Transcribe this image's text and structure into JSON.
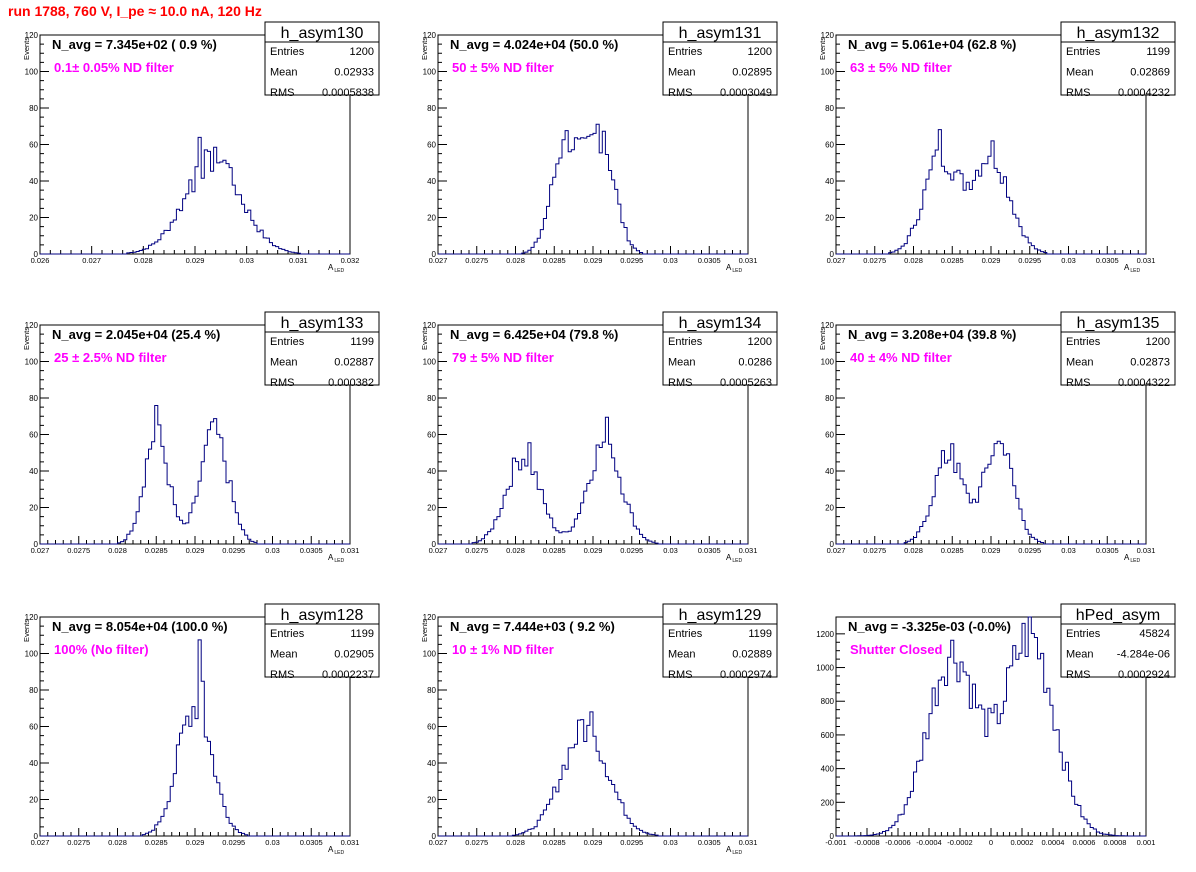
{
  "run_title": "run 1788,   760 V, I_pe ≈ 10.0 nA, 120 Hz",
  "stats_labels": {
    "entries": "Entries",
    "mean": "Mean",
    "rms": "RMS"
  },
  "colors": {
    "line": "#000080",
    "title": "#ff0000",
    "filter": "#ff00ff"
  },
  "chart_data": [
    {
      "type": "histogram",
      "hist_name": "h_asym130",
      "navg": "N_avg = 7.345e+02 ( 0.9 %)",
      "filter": "0.1± 0.05% ND filter",
      "entries": "1200",
      "mean": "0.02933",
      "rms": "0.0005838",
      "xlabel": "A",
      "xlabel_sub": "LED",
      "ylabel": "Events",
      "xlim": [
        0.026,
        0.032
      ],
      "ylim": [
        0,
        120
      ],
      "xticks": [
        0.026,
        0.027,
        0.028,
        0.029,
        0.03,
        0.031,
        0.032
      ],
      "xtick_labels": [
        "0.026",
        "0.027",
        "0.028",
        "0.029",
        "0.03",
        "0.031",
        "0.032"
      ],
      "yticks": [
        0,
        20,
        40,
        60,
        80,
        100,
        120
      ],
      "peaks": [
        {
          "mu": 0.02935,
          "sigma": 0.00055,
          "height": 50
        }
      ],
      "spikes": [
        [
          0.0292,
          58
        ],
        [
          0.0294,
          60
        ],
        [
          0.0291,
          56
        ],
        [
          0.0296,
          55
        ],
        [
          0.0289,
          45
        ]
      ]
    },
    {
      "type": "histogram",
      "hist_name": "h_asym131",
      "navg": "N_avg = 4.024e+04 (50.0 %)",
      "filter": "50 ± 5% ND filter",
      "entries": "1200",
      "mean": "0.02895",
      "rms": "0.0003049",
      "xlabel": "A",
      "xlabel_sub": "LED",
      "ylabel": "Events",
      "xlim": [
        0.027,
        0.031
      ],
      "ylim": [
        0,
        120
      ],
      "xticks": [
        0.027,
        0.0275,
        0.028,
        0.0285,
        0.029,
        0.0295,
        0.03,
        0.0305,
        0.031
      ],
      "xtick_labels": [
        "0.027",
        "0.0275",
        "0.028",
        "0.0285",
        "0.029",
        "0.0295",
        "0.03",
        "0.0305",
        "0.031"
      ],
      "yticks": [
        0,
        20,
        40,
        60,
        80,
        100,
        120
      ],
      "peaks": [
        {
          "mu": 0.02865,
          "sigma": 0.00018,
          "height": 60
        },
        {
          "mu": 0.0291,
          "sigma": 0.00018,
          "height": 62
        }
      ],
      "spikes": [
        [
          0.02862,
          68
        ],
        [
          0.02915,
          71
        ],
        [
          0.02905,
          70
        ]
      ]
    },
    {
      "type": "histogram",
      "hist_name": "h_asym132",
      "navg": "N_avg = 5.061e+04 (62.8 %)",
      "filter": "63 ± 5% ND filter",
      "entries": "1199",
      "mean": "0.02869",
      "rms": "0.0004232",
      "xlabel": "A",
      "xlabel_sub": "LED",
      "ylabel": "Events",
      "xlim": [
        0.027,
        0.031
      ],
      "ylim": [
        0,
        120
      ],
      "xticks": [
        0.027,
        0.0275,
        0.028,
        0.0285,
        0.029,
        0.0295,
        0.03,
        0.0305,
        0.031
      ],
      "xtick_labels": [
        "0.027",
        "0.0275",
        "0.028",
        "0.0285",
        "0.029",
        "0.0295",
        "0.03",
        "0.0305",
        "0.031"
      ],
      "yticks": [
        0,
        20,
        40,
        60,
        80,
        100,
        120
      ],
      "peaks": [
        {
          "mu": 0.02835,
          "sigma": 0.00022,
          "height": 52
        },
        {
          "mu": 0.029,
          "sigma": 0.00024,
          "height": 54
        }
      ],
      "spikes": [
        [
          0.02832,
          62
        ],
        [
          0.02898,
          57
        ],
        [
          0.029,
          57
        ]
      ]
    },
    {
      "type": "histogram",
      "hist_name": "h_asym133",
      "navg": "N_avg = 2.045e+04 (25.4 %)",
      "filter": "25 ± 2.5% ND filter",
      "entries": "1199",
      "mean": "0.02887",
      "rms": "0.000382",
      "xlabel": "A",
      "xlabel_sub": "LED",
      "ylabel": "Events",
      "xlim": [
        0.027,
        0.031
      ],
      "ylim": [
        0,
        120
      ],
      "xticks": [
        0.027,
        0.0275,
        0.028,
        0.0285,
        0.029,
        0.0295,
        0.03,
        0.0305,
        0.031
      ],
      "xtick_labels": [
        "0.027",
        "0.0275",
        "0.028",
        "0.0285",
        "0.029",
        "0.0295",
        "0.03",
        "0.0305",
        "0.031"
      ],
      "yticks": [
        0,
        20,
        40,
        60,
        80,
        100,
        120
      ],
      "peaks": [
        {
          "mu": 0.0285,
          "sigma": 0.00016,
          "height": 60
        },
        {
          "mu": 0.02925,
          "sigma": 0.00018,
          "height": 60
        }
      ],
      "spikes": [
        [
          0.0285,
          75
        ],
        [
          0.02922,
          66
        ]
      ]
    },
    {
      "type": "histogram",
      "hist_name": "h_asym134",
      "navg": "N_avg = 6.425e+04 (79.8 %)",
      "filter": "79 ± 5% ND filter",
      "entries": "1200",
      "mean": "0.0286",
      "rms": "0.0005263",
      "xlabel": "A",
      "xlabel_sub": "LED",
      "ylabel": "Events",
      "xlim": [
        0.027,
        0.031
      ],
      "ylim": [
        0,
        120
      ],
      "xticks": [
        0.027,
        0.0275,
        0.028,
        0.0285,
        0.029,
        0.0295,
        0.03,
        0.0305,
        0.031
      ],
      "xtick_labels": [
        "0.027",
        "0.0275",
        "0.028",
        "0.0285",
        "0.029",
        "0.0295",
        "0.03",
        "0.0305",
        "0.031"
      ],
      "yticks": [
        0,
        20,
        40,
        60,
        80,
        100,
        120
      ],
      "peaks": [
        {
          "mu": 0.0281,
          "sigma": 0.00022,
          "height": 48
        },
        {
          "mu": 0.02915,
          "sigma": 0.00022,
          "height": 55
        }
      ],
      "spikes": [
        [
          0.02818,
          53
        ],
        [
          0.0292,
          62
        ]
      ]
    },
    {
      "type": "histogram",
      "hist_name": "h_asym135",
      "navg": "N_avg = 3.208e+04 (39.8 %)",
      "filter": "40 ± 4% ND filter",
      "entries": "1200",
      "mean": "0.02873",
      "rms": "0.0004322",
      "xlabel": "A",
      "xlabel_sub": "LED",
      "ylabel": "Events",
      "xlim": [
        0.027,
        0.031
      ],
      "ylim": [
        0,
        120
      ],
      "xticks": [
        0.027,
        0.0275,
        0.028,
        0.0285,
        0.029,
        0.0295,
        0.03,
        0.0305,
        0.031
      ],
      "xtick_labels": [
        "0.027",
        "0.0275",
        "0.028",
        "0.0285",
        "0.029",
        "0.0295",
        "0.03",
        "0.0305",
        "0.031"
      ],
      "yticks": [
        0,
        20,
        40,
        60,
        80,
        100,
        120
      ],
      "peaks": [
        {
          "mu": 0.02845,
          "sigma": 0.00019,
          "height": 48
        },
        {
          "mu": 0.0291,
          "sigma": 0.00019,
          "height": 55
        }
      ],
      "spikes": [
        [
          0.0285,
          58
        ],
        [
          0.02915,
          62
        ]
      ]
    },
    {
      "type": "histogram",
      "hist_name": "h_asym128",
      "navg": "N_avg = 8.054e+04 (100.0 %)",
      "filter": "100% (No filter)",
      "entries": "1199",
      "mean": "0.02905",
      "rms": "0.0002237",
      "xlabel": "A",
      "xlabel_sub": "LED",
      "ylabel": "Events",
      "xlim": [
        0.027,
        0.031
      ],
      "ylim": [
        0,
        120
      ],
      "xticks": [
        0.027,
        0.0275,
        0.028,
        0.0285,
        0.029,
        0.0295,
        0.03,
        0.0305,
        0.031
      ],
      "xtick_labels": [
        "0.027",
        "0.0275",
        "0.028",
        "0.0285",
        "0.029",
        "0.0295",
        "0.03",
        "0.0305",
        "0.031"
      ],
      "yticks": [
        0,
        20,
        40,
        60,
        80,
        100,
        120
      ],
      "peaks": [
        {
          "mu": 0.029,
          "sigma": 0.00022,
          "height": 72
        }
      ],
      "spikes": [
        [
          0.02905,
          108
        ],
        [
          0.0291,
          90
        ]
      ]
    },
    {
      "type": "histogram",
      "hist_name": "h_asym129",
      "navg": "N_avg = 7.444e+03 ( 9.2 %)",
      "filter": "10 ± 1% ND filter",
      "entries": "1199",
      "mean": "0.02889",
      "rms": "0.0002974",
      "xlabel": "A",
      "xlabel_sub": "LED",
      "ylabel": "Events",
      "xlim": [
        0.027,
        0.031
      ],
      "ylim": [
        0,
        120
      ],
      "xticks": [
        0.027,
        0.0275,
        0.028,
        0.0285,
        0.029,
        0.0295,
        0.03,
        0.0305,
        0.031
      ],
      "xtick_labels": [
        "0.027",
        "0.0275",
        "0.028",
        "0.0285",
        "0.029",
        "0.0295",
        "0.03",
        "0.0305",
        "0.031"
      ],
      "yticks": [
        0,
        20,
        40,
        60,
        80,
        100,
        120
      ],
      "peaks": [
        {
          "mu": 0.0289,
          "sigma": 0.0003,
          "height": 58
        }
      ],
      "spikes": [
        [
          0.029,
          64
        ],
        [
          0.02885,
          62
        ]
      ]
    },
    {
      "type": "histogram",
      "hist_name": "hPed_asym",
      "navg": "N_avg = -3.325e-03 (-0.0%)",
      "filter": "Shutter Closed",
      "entries": "45824",
      "mean": "-4.284e-06",
      "rms": "0.0002924",
      "xlabel": "",
      "xlabel_sub": "",
      "ylabel": "",
      "xlim": [
        -0.001,
        0.001
      ],
      "ylim": [
        0,
        1300
      ],
      "xticks": [
        -0.001,
        -0.0008,
        -0.0006,
        -0.0004,
        -0.0002,
        0,
        0.0002,
        0.0004,
        0.0006,
        0.0008,
        0.001
      ],
      "xtick_labels": [
        "-0.001",
        "-0.0008",
        "-0.0006",
        "-0.0004",
        "-0.0002",
        "0",
        "0.0002",
        "0.0004",
        "0.0006",
        "0.0008",
        "0.001"
      ],
      "yticks": [
        0,
        200,
        400,
        600,
        800,
        1000,
        1200
      ],
      "peaks": [
        {
          "mu": -0.00025,
          "sigma": 0.00016,
          "height": 1080
        },
        {
          "mu": 0.00025,
          "sigma": 0.00016,
          "height": 1180
        }
      ],
      "spikes": [
        [
          0.00025,
          1250
        ]
      ]
    }
  ]
}
